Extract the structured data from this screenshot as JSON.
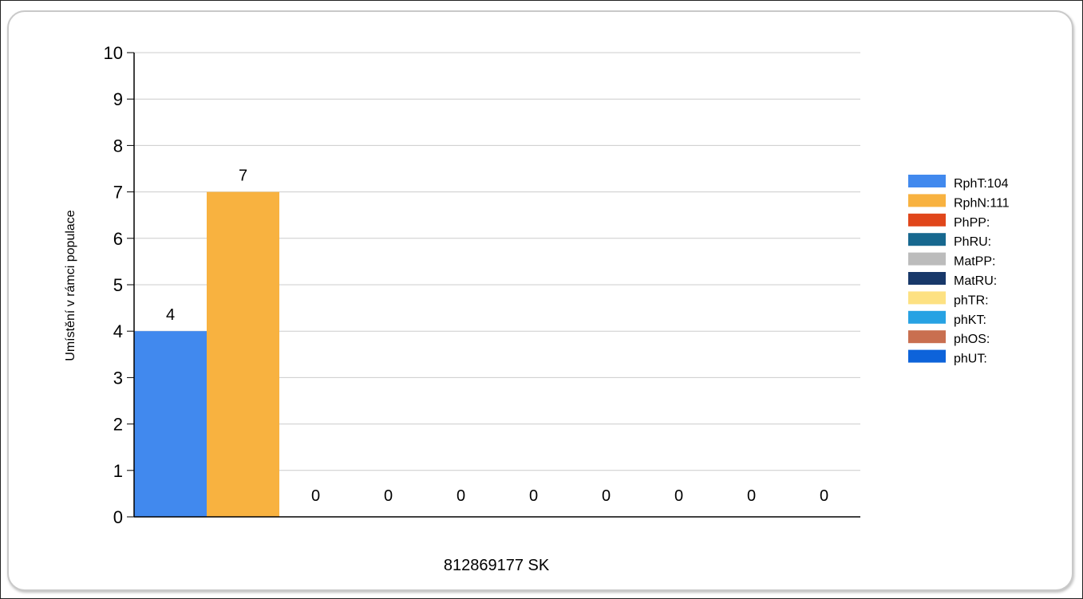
{
  "chart_data": {
    "type": "bar",
    "xlabel": "812869177 SK",
    "ylabel": "Umístění v rámci populace",
    "ylim": [
      0,
      10
    ],
    "yticks": [
      "0",
      "1",
      "2",
      "3",
      "4",
      "5",
      "6",
      "7",
      "8",
      "9",
      "10"
    ],
    "grid": true,
    "legend_position": "right",
    "series": [
      {
        "name": "RphT:104",
        "value": 4,
        "label": "4",
        "color": "#4189ee"
      },
      {
        "name": "RphN:111",
        "value": 7,
        "label": "7",
        "color": "#f8b240"
      },
      {
        "name": "PhPP:",
        "value": 0,
        "label": "0",
        "color": "#e0461b"
      },
      {
        "name": "PhRU:",
        "value": 0,
        "label": "0",
        "color": "#17688f"
      },
      {
        "name": "MatPP:",
        "value": 0,
        "label": "0",
        "color": "#bcbcbc"
      },
      {
        "name": "MatRU:",
        "value": 0,
        "label": "0",
        "color": "#183869"
      },
      {
        "name": "phTR:",
        "value": 0,
        "label": "0",
        "color": "#fde182"
      },
      {
        "name": "phKT:",
        "value": 0,
        "label": "0",
        "color": "#27a2e3"
      },
      {
        "name": "phOS:",
        "value": 0,
        "label": "0",
        "color": "#c96f50"
      },
      {
        "name": "phUT:",
        "value": 0,
        "label": "0",
        "color": "#0d63da"
      }
    ]
  }
}
